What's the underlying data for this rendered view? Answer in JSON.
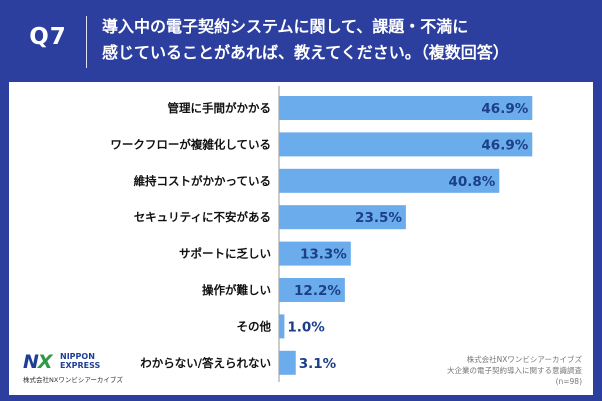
{
  "header": {
    "question_number": "Q7",
    "question_line1": "導入中の電子契約システムに関して、課題・不満に",
    "question_line2": "感じていることがあれば、教えてください。（複数回答）"
  },
  "branding": {
    "logo_mark": "N",
    "logo_mark_x": "X",
    "logo_name_line1": "NIPPON",
    "logo_name_line2": "EXPRESS",
    "logo_sub": "株式会社NXワンビシアーカイブズ"
  },
  "source": {
    "line1": "株式会社NXワンビシアーカイブズ",
    "line2": "大企業の電子契約導入に関する意識調査",
    "line3": "(n=98)"
  },
  "colors": {
    "frame": "#2c3e9e",
    "bar": "#6aacec",
    "value_text": "#1d3f8a"
  },
  "chart_data": {
    "type": "bar",
    "orientation": "horizontal",
    "title": "導入中の電子契約システムに関して、課題・不満に感じていることがあれば、教えてください。（複数回答）",
    "categories": [
      "管理に手間がかかる",
      "ワークフローが複雑化している",
      "維持コストがかかっている",
      "セキュリティに不安がある",
      "サポートに乏しい",
      "操作が難しい",
      "その他",
      "わからない/答えられない"
    ],
    "values": [
      46.9,
      46.9,
      40.8,
      23.5,
      13.3,
      12.2,
      1.0,
      3.1
    ],
    "value_labels": [
      "46.9%",
      "46.9%",
      "40.8%",
      "23.5%",
      "13.3%",
      "12.2%",
      "1.0%",
      "3.1%"
    ],
    "unit": "%",
    "xlim": [
      0,
      50
    ],
    "xlabel": "",
    "ylabel": "",
    "grid": false,
    "legend": "none"
  }
}
